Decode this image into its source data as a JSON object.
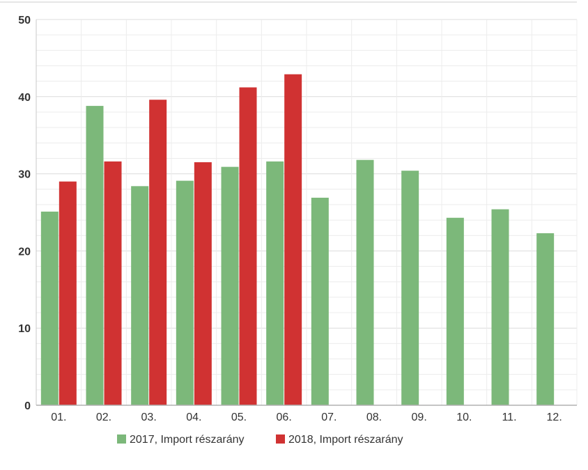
{
  "chart_data": {
    "type": "bar",
    "categories": [
      "01.",
      "02.",
      "03.",
      "04.",
      "05.",
      "06.",
      "07.",
      "08.",
      "09.",
      "10.",
      "11.",
      "12."
    ],
    "series": [
      {
        "name": "2017, Import részarány",
        "color": "#7cb87a",
        "values": [
          25.1,
          38.8,
          28.4,
          29.1,
          30.9,
          31.6,
          26.9,
          31.8,
          30.4,
          24.3,
          25.4,
          22.3
        ]
      },
      {
        "name": "2018, Import részarány",
        "color": "#d03232",
        "values": [
          29.0,
          31.6,
          39.6,
          31.5,
          41.2,
          42.9,
          null,
          null,
          null,
          null,
          null,
          null
        ]
      }
    ],
    "ylim": [
      0,
      50
    ],
    "yticks": [
      "0",
      "10",
      "20",
      "30",
      "40",
      "50"
    ],
    "grid": true,
    "legend": "bottom-center"
  }
}
